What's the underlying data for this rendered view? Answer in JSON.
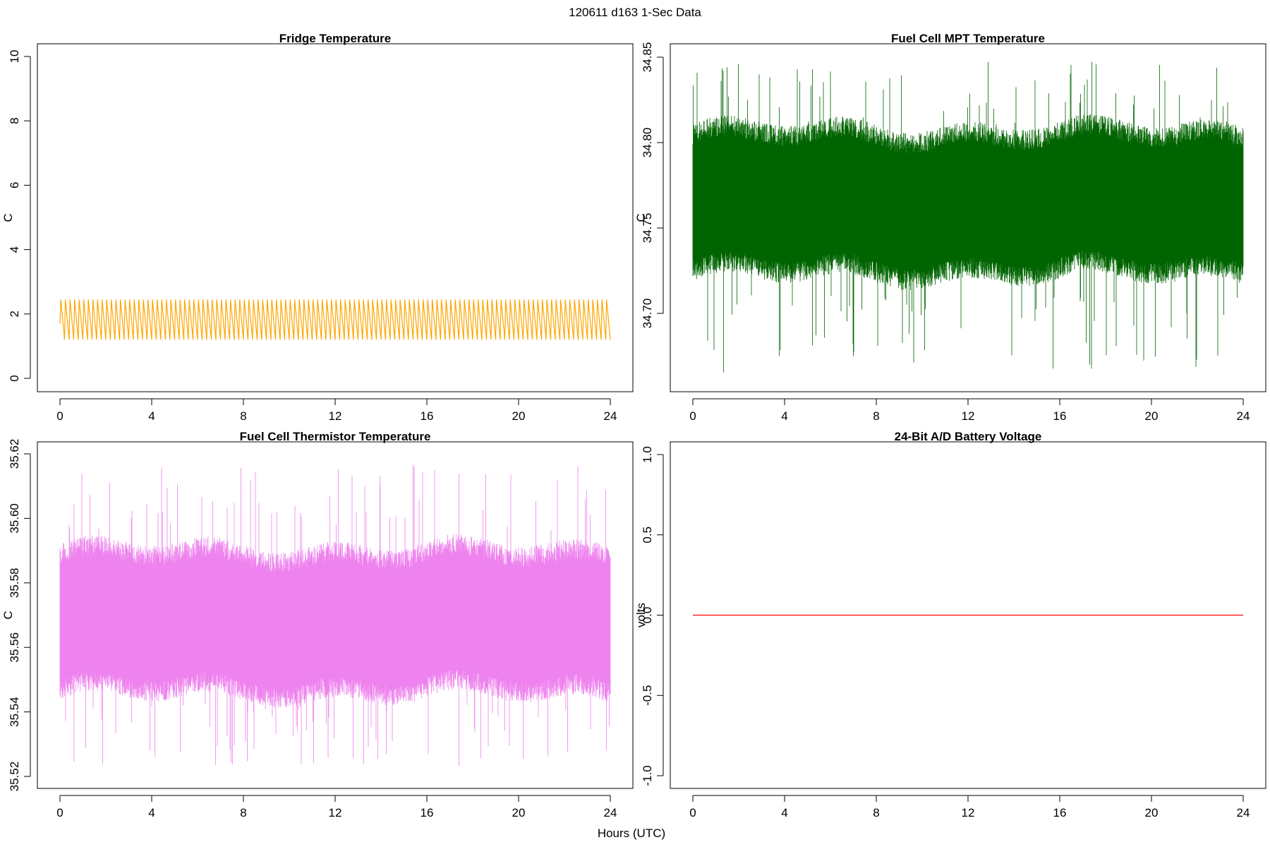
{
  "figure": {
    "main_title": "120611   d163   1-Sec Data",
    "xlabel": "Hours (UTC)"
  },
  "chart_data": [
    {
      "type": "line",
      "title": "Fridge Temperature",
      "ylabel": "C",
      "xlim": [
        0,
        24
      ],
      "ylim": [
        0,
        10
      ],
      "xticks": [
        "0",
        "4",
        "8",
        "12",
        "16",
        "20",
        "24"
      ],
      "yticks": [
        "0",
        "2",
        "4",
        "6",
        "8",
        "10"
      ],
      "color": "#FFA500",
      "series": [
        {
          "pattern": "sawtooth",
          "min": 1.2,
          "max": 2.45,
          "cycles": 120,
          "x_range": [
            0,
            24
          ]
        }
      ]
    },
    {
      "type": "line",
      "title": "Fuel Cell MPT Temperature",
      "ylabel": "C",
      "xlim": [
        0,
        24
      ],
      "ylim": [
        34.66,
        34.85
      ],
      "xticks": [
        "0",
        "4",
        "8",
        "12",
        "16",
        "20",
        "24"
      ],
      "yticks": [
        "34.70",
        "34.75",
        "34.80",
        "34.85"
      ],
      "color": "#006400",
      "series": [
        {
          "pattern": "noise",
          "mean": 34.765,
          "band": [
            34.725,
            34.805
          ],
          "extremes": [
            34.665,
            34.848
          ],
          "x_range": [
            0,
            24
          ]
        }
      ]
    },
    {
      "type": "line",
      "title": "Fuel Cell Thermistor Temperature",
      "ylabel": "C",
      "xlim": [
        0,
        24
      ],
      "ylim": [
        35.52,
        35.62
      ],
      "xticks": [
        "0",
        "4",
        "8",
        "12",
        "16",
        "20",
        "24"
      ],
      "yticks": [
        "35.52",
        "35.54",
        "35.56",
        "35.58",
        "35.60",
        "35.62"
      ],
      "color": "#EE82EE",
      "series": [
        {
          "pattern": "noise",
          "mean": 35.568,
          "band": [
            35.548,
            35.59
          ],
          "extremes": [
            35.522,
            35.618
          ],
          "x_range": [
            0,
            24
          ]
        }
      ]
    },
    {
      "type": "line",
      "title": "24-Bit A/D Battery Voltage",
      "ylabel": "volts",
      "xlim": [
        0,
        24
      ],
      "ylim": [
        -1.0,
        1.0
      ],
      "xticks": [
        "0",
        "4",
        "8",
        "12",
        "16",
        "20",
        "24"
      ],
      "yticks": [
        "-1.0",
        "-0.5",
        "0.0",
        "0.5",
        "1.0"
      ],
      "color": "#FF0000",
      "series": [
        {
          "pattern": "constant",
          "x": [
            0,
            24
          ],
          "values": [
            0.0,
            0.0
          ]
        }
      ]
    }
  ]
}
